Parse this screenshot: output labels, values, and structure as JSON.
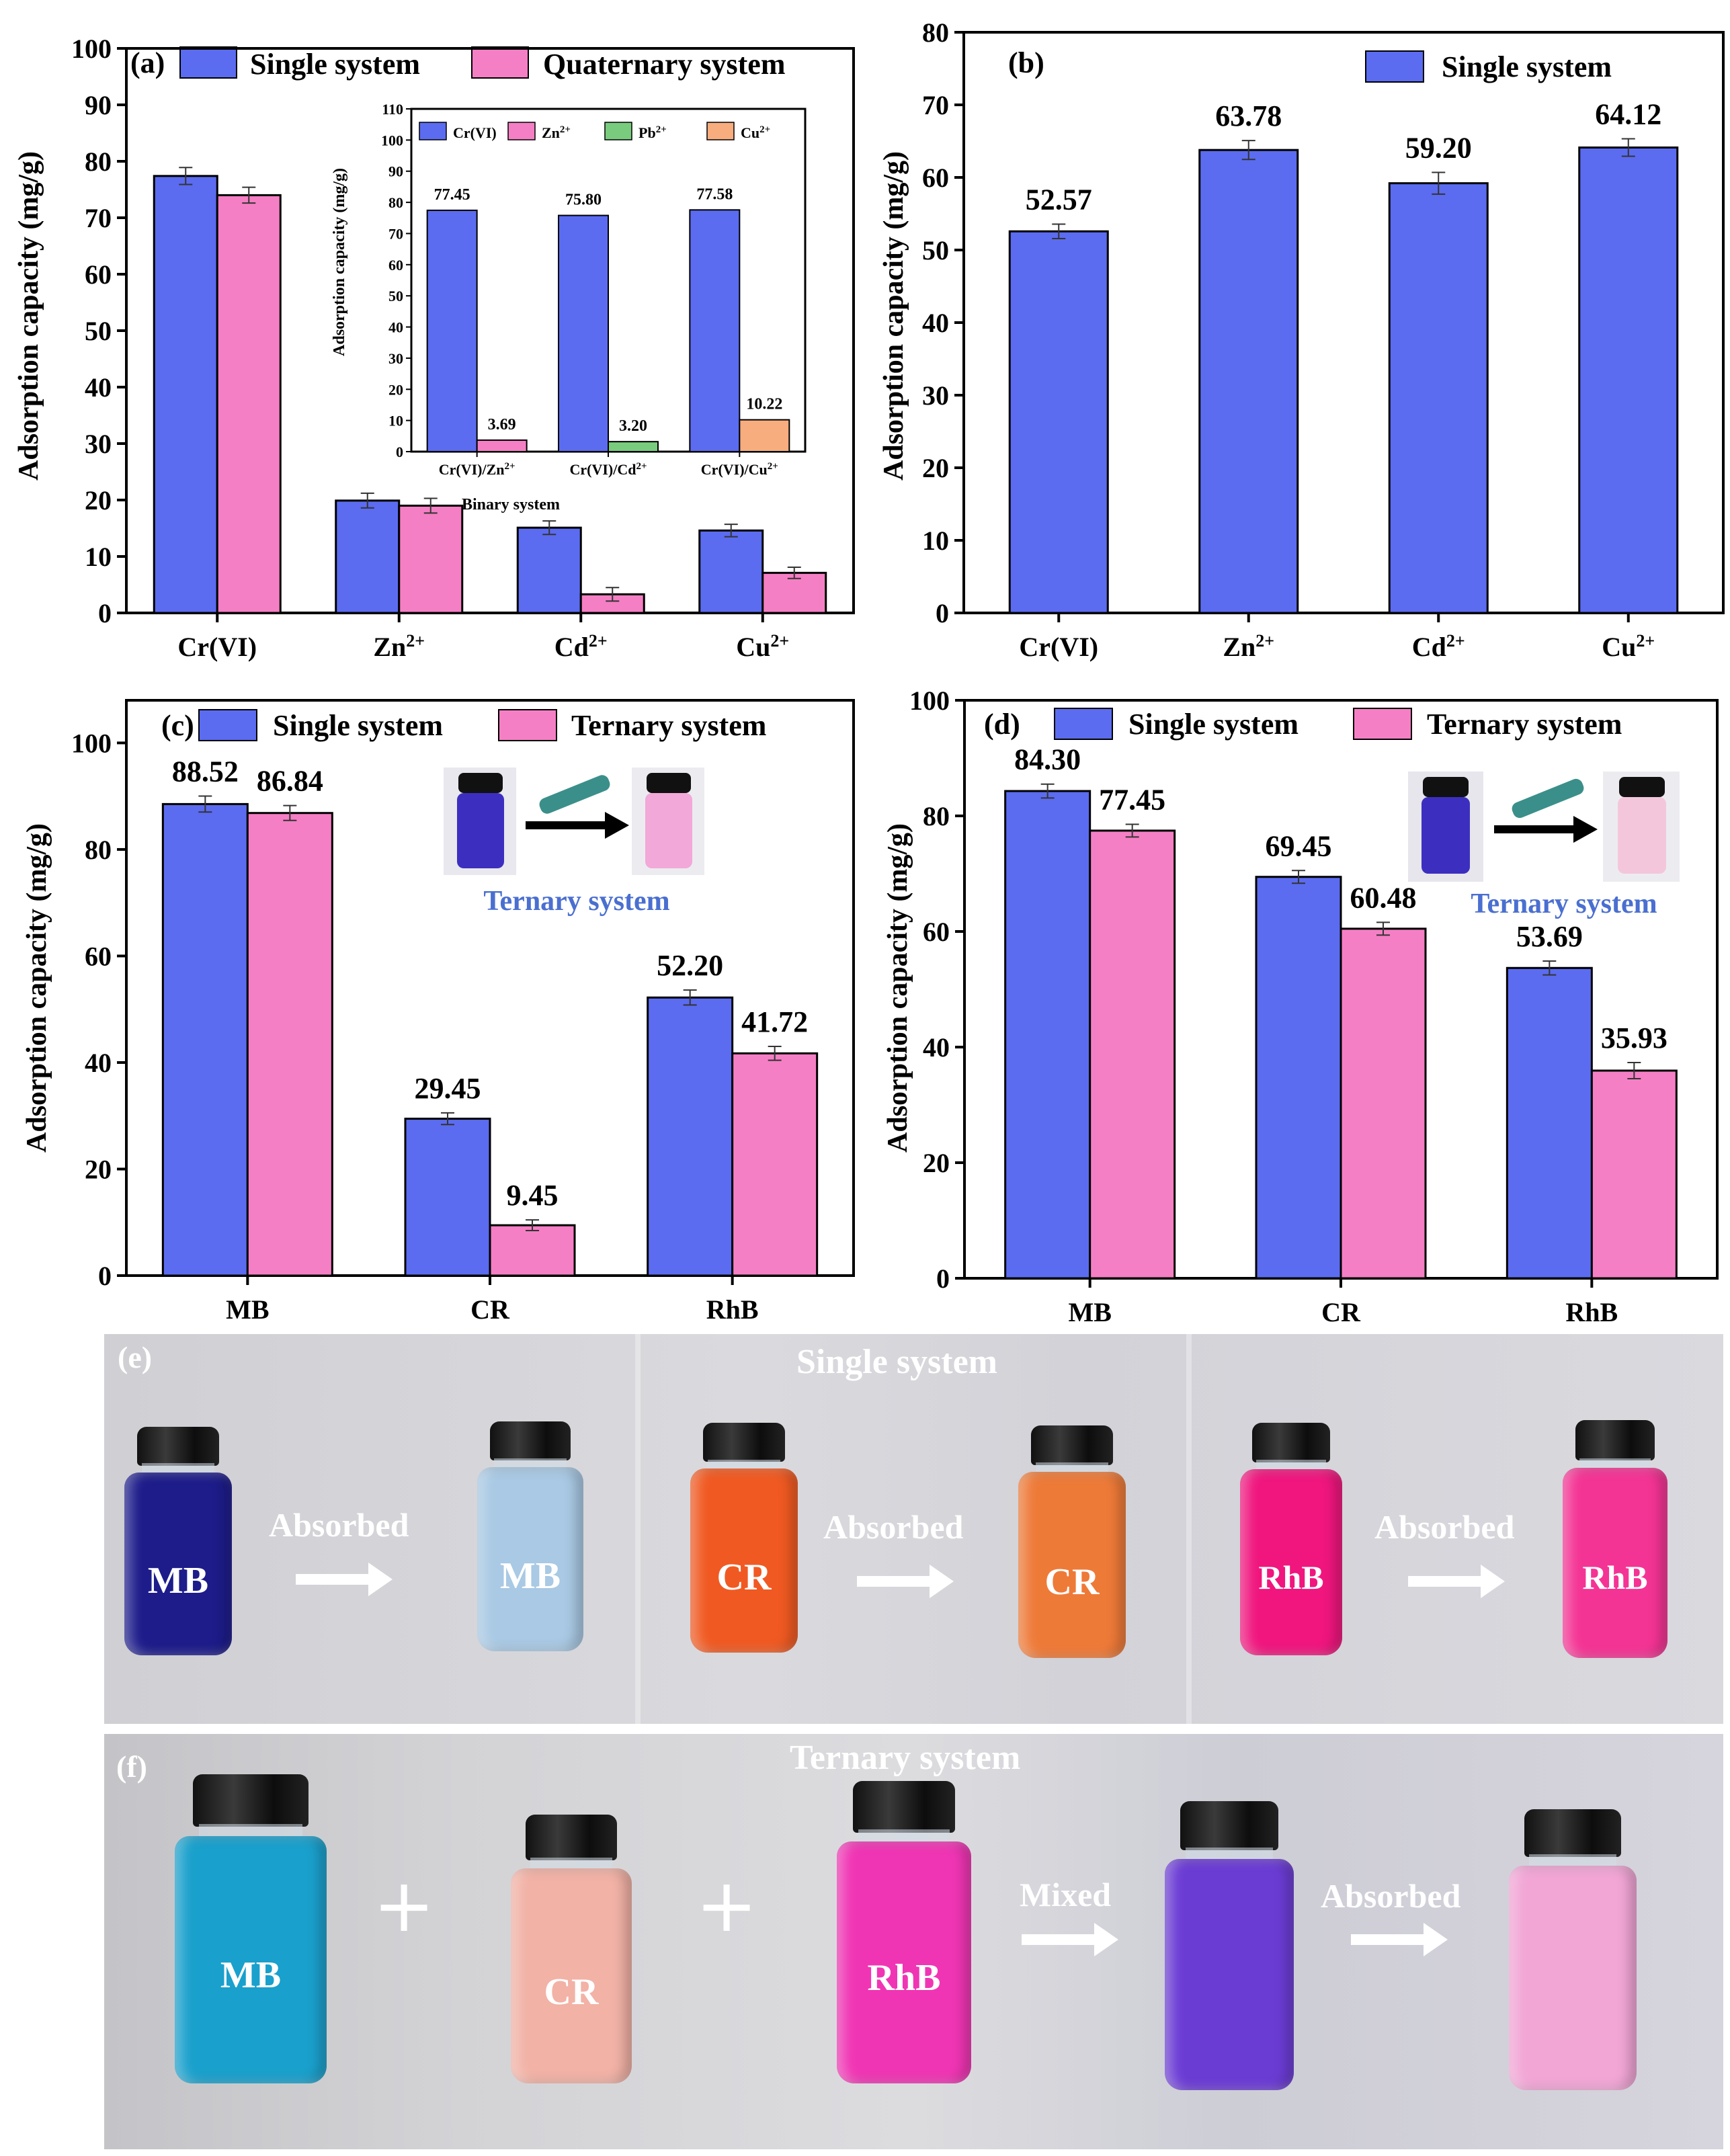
{
  "chart_data": [
    {
      "panel": "(a)",
      "type": "bar",
      "ylabel": "Adsorption capacity (mg/g)",
      "ylim": [
        0,
        100
      ],
      "yticks": [
        0,
        10,
        20,
        30,
        40,
        50,
        60,
        70,
        80,
        90,
        100
      ],
      "categories": [
        "Cr(VI)",
        "Zn2+",
        "Cd2+",
        "Cu2+"
      ],
      "series": [
        {
          "name": "Single system",
          "color": "#5b6cf0",
          "values": [
            77.4,
            19.9,
            15.1,
            14.6
          ],
          "errors": [
            1.5,
            1.3,
            1.2,
            1.1
          ]
        },
        {
          "name": "Quaternary system",
          "color": "#f57fc4",
          "values": [
            74.0,
            19.0,
            3.3,
            7.1
          ],
          "errors": [
            1.4,
            1.3,
            1.2,
            1.0
          ]
        }
      ],
      "inset": {
        "type": "bar",
        "ylabel": "Adsorption capacity (mg/g)",
        "xlabel": "Binary system",
        "ylim": [
          0,
          110
        ],
        "yticks": [
          0,
          10,
          20,
          30,
          40,
          50,
          60,
          70,
          80,
          90,
          100,
          110
        ],
        "legend": [
          {
            "name": "Cr(VI)",
            "color": "#5b6cf0"
          },
          {
            "name": "Zn2+",
            "color": "#f57fc4"
          },
          {
            "name": "Pb2+",
            "color": "#79cc7e"
          },
          {
            "name": "Cu2+",
            "color": "#f7ad7e"
          }
        ],
        "groups": [
          {
            "label": "Cr(VI)/Zn2+",
            "bars": [
              {
                "value": 77.45,
                "label": "77.45",
                "color": "#5b6cf0"
              },
              {
                "value": 3.69,
                "label": "3.69",
                "color": "#f57fc4"
              }
            ]
          },
          {
            "label": "Cr(VI)/Cd2+",
            "bars": [
              {
                "value": 75.8,
                "label": "75.80",
                "color": "#5b6cf0"
              },
              {
                "value": 3.2,
                "label": "3.20",
                "color": "#79cc7e"
              }
            ]
          },
          {
            "label": "Cr(VI)/Cu2+",
            "bars": [
              {
                "value": 77.58,
                "label": "77.58",
                "color": "#5b6cf0"
              },
              {
                "value": 10.22,
                "label": "10.22",
                "color": "#f7ad7e"
              }
            ]
          }
        ]
      }
    },
    {
      "panel": "(b)",
      "type": "bar",
      "ylabel": "Adsorption capacity (mg/g)",
      "ylim": [
        0,
        80
      ],
      "yticks": [
        0,
        10,
        20,
        30,
        40,
        50,
        60,
        70,
        80
      ],
      "categories": [
        "Cr(VI)",
        "Zn2+",
        "Cd2+",
        "Cu2+"
      ],
      "series": [
        {
          "name": "Single system",
          "color": "#5b6cf0",
          "values": [
            52.57,
            63.78,
            59.2,
            64.12
          ],
          "labels": [
            "52.57",
            "63.78",
            "59.20",
            "64.12"
          ],
          "errors": [
            1.0,
            1.3,
            1.5,
            1.2
          ]
        }
      ]
    },
    {
      "panel": "(c)",
      "type": "bar",
      "ylabel": "Adsorption capacity (mg/g)",
      "ylim": [
        0,
        108
      ],
      "yticks": [
        0,
        20,
        40,
        60,
        80,
        100
      ],
      "categories": [
        "MB",
        "CR",
        "RhB"
      ],
      "inset_caption": "Ternary system",
      "series": [
        {
          "name": "Single system",
          "color": "#5b6cf0",
          "values": [
            88.52,
            29.45,
            52.2
          ],
          "labels": [
            "88.52",
            "29.45",
            "52.20"
          ],
          "errors": [
            1.5,
            1.1,
            1.4
          ]
        },
        {
          "name": "Ternary system",
          "color": "#f57fc4",
          "values": [
            86.84,
            9.45,
            41.72
          ],
          "labels": [
            "86.84",
            "9.45",
            "41.72"
          ],
          "errors": [
            1.4,
            1.0,
            1.3
          ]
        }
      ]
    },
    {
      "panel": "(d)",
      "type": "bar",
      "ylabel": "Adsorption capacity (mg/g)",
      "ylim": [
        0,
        100
      ],
      "yticks": [
        0,
        20,
        40,
        60,
        80,
        100
      ],
      "categories": [
        "MB",
        "CR",
        "RhB"
      ],
      "inset_caption": "Ternary system",
      "series": [
        {
          "name": "Single system",
          "color": "#5b6cf0",
          "values": [
            84.3,
            69.45,
            53.69
          ],
          "labels": [
            "84.30",
            "69.45",
            "53.69"
          ],
          "errors": [
            1.2,
            1.1,
            1.2
          ]
        },
        {
          "name": "Ternary system",
          "color": "#f57fc4",
          "values": [
            77.45,
            60.48,
            35.93
          ],
          "labels": [
            "77.45",
            "60.48",
            "35.93"
          ],
          "errors": [
            1.1,
            1.1,
            1.4
          ]
        }
      ]
    }
  ],
  "photos": {
    "e": {
      "label": "(e)",
      "title": "Single system",
      "arrow_text": "Absorbed",
      "vials": [
        {
          "name": "MB",
          "color": "#1d1c8a"
        },
        {
          "name": "MB",
          "color": "#a9c9e4"
        },
        {
          "name": "CR",
          "color": "#f05a22"
        },
        {
          "name": "CR",
          "color": "#ee7a38"
        },
        {
          "name": "RhB",
          "color": "#f0167e"
        },
        {
          "name": "RhB",
          "color": "#f43494"
        }
      ]
    },
    "f": {
      "label": "(f)",
      "title": "Ternary system",
      "plus": "+",
      "mixed_text": "Mixed",
      "absorbed_text": "Absorbed",
      "vials": [
        {
          "name": "MB",
          "color": "#1aa0cc"
        },
        {
          "name": "CR",
          "color": "#f2b2a6"
        },
        {
          "name": "RhB",
          "color": "#f035b4"
        },
        {
          "name": "",
          "color": "#6b3cd4"
        },
        {
          "name": "",
          "color": "#f2a6d6"
        }
      ]
    }
  }
}
